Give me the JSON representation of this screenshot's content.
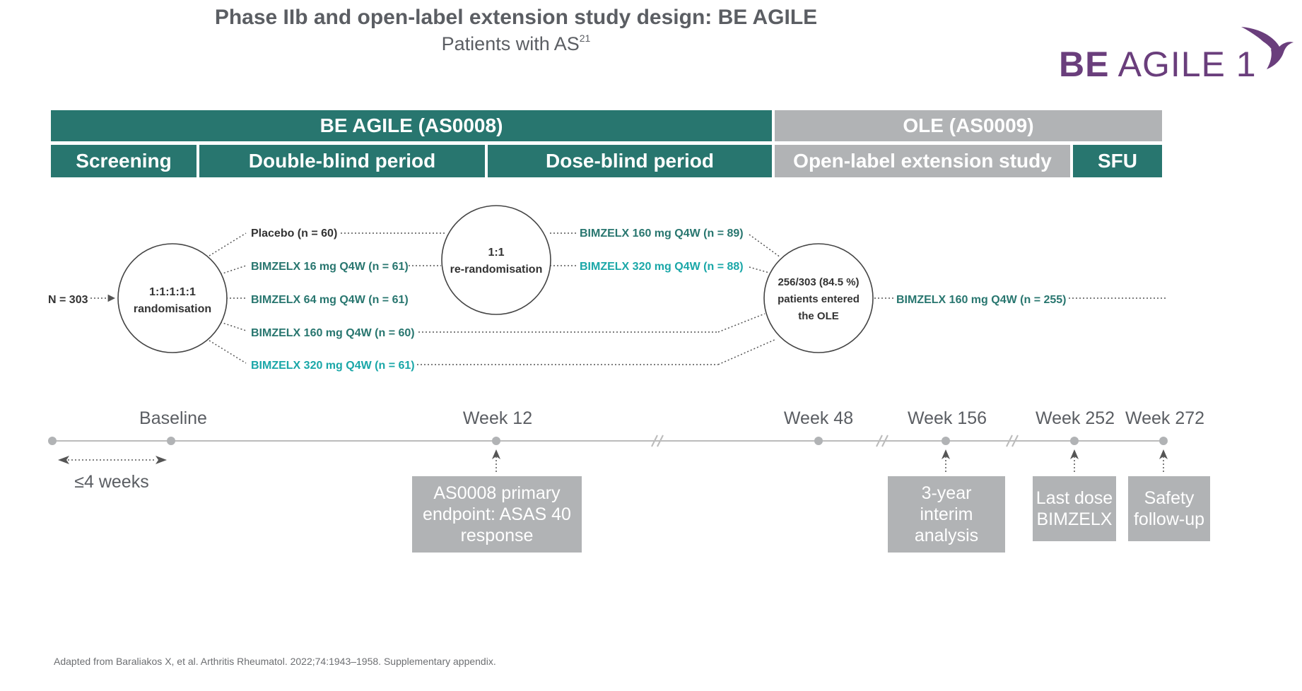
{
  "header": {
    "title": "Phase IIb and open-label extension study design: BE AGILE",
    "subtitle": "Patients with AS",
    "subtitle_ref": "21",
    "logo_bold": "BE",
    "logo_text": " AGILE 1"
  },
  "study_bars": {
    "main": "BE AGILE (AS0008)",
    "ole": "OLE (AS0009)",
    "screening": "Screening",
    "double_blind": "Double-blind period",
    "dose_blind": "Dose-blind period",
    "open_label": "Open-label extension study",
    "sfu": "SFU"
  },
  "flow": {
    "n_total": "N = 303",
    "rand_line1": "1:1:1:1:1",
    "rand_line2": "randomisation",
    "rerand_line1": "1:1",
    "rerand_line2": "re-randomisation",
    "ole_line1": "256/303 (84.5 %)",
    "ole_line2": "patients entered",
    "ole_line3": "the OLE",
    "arms": [
      "Placebo (n = 60)",
      "BIMZELX 16 mg Q4W (n = 61)",
      "BIMZELX 64 mg Q4W (n = 61)",
      "BIMZELX 160 mg Q4W (n = 60)",
      "BIMZELX 320 mg Q4W (n = 61)"
    ],
    "rerand_arms": [
      "BIMZELX 160 mg Q4W (n = 89)",
      "BIMZELX 320 mg Q4W (n = 88)"
    ],
    "ole_arm": "BIMZELX 160 mg Q4W (n = 255)"
  },
  "colors": {
    "teal": "#28766f",
    "cyan": "#1aa7a8",
    "grey": "#b1b3b5",
    "purple": "#6a3e7c"
  },
  "timeline": {
    "baseline": "Baseline",
    "week12": "Week 12",
    "week48": "Week 48",
    "week156": "Week 156",
    "week252": "Week 252",
    "week272": "Week 272",
    "screening_duration": "≤4 weeks"
  },
  "callouts": {
    "primary": "AS0008 primary endpoint: ASAS 40 response",
    "interim": "3-year interim analysis",
    "last_dose": "Last dose BIMZELX",
    "safety": "Safety follow-up"
  },
  "footnote": "Adapted from Baraliakos X, et al. Arthritis Rheumatol. 2022;74:1943–1958. Supplementary appendix."
}
